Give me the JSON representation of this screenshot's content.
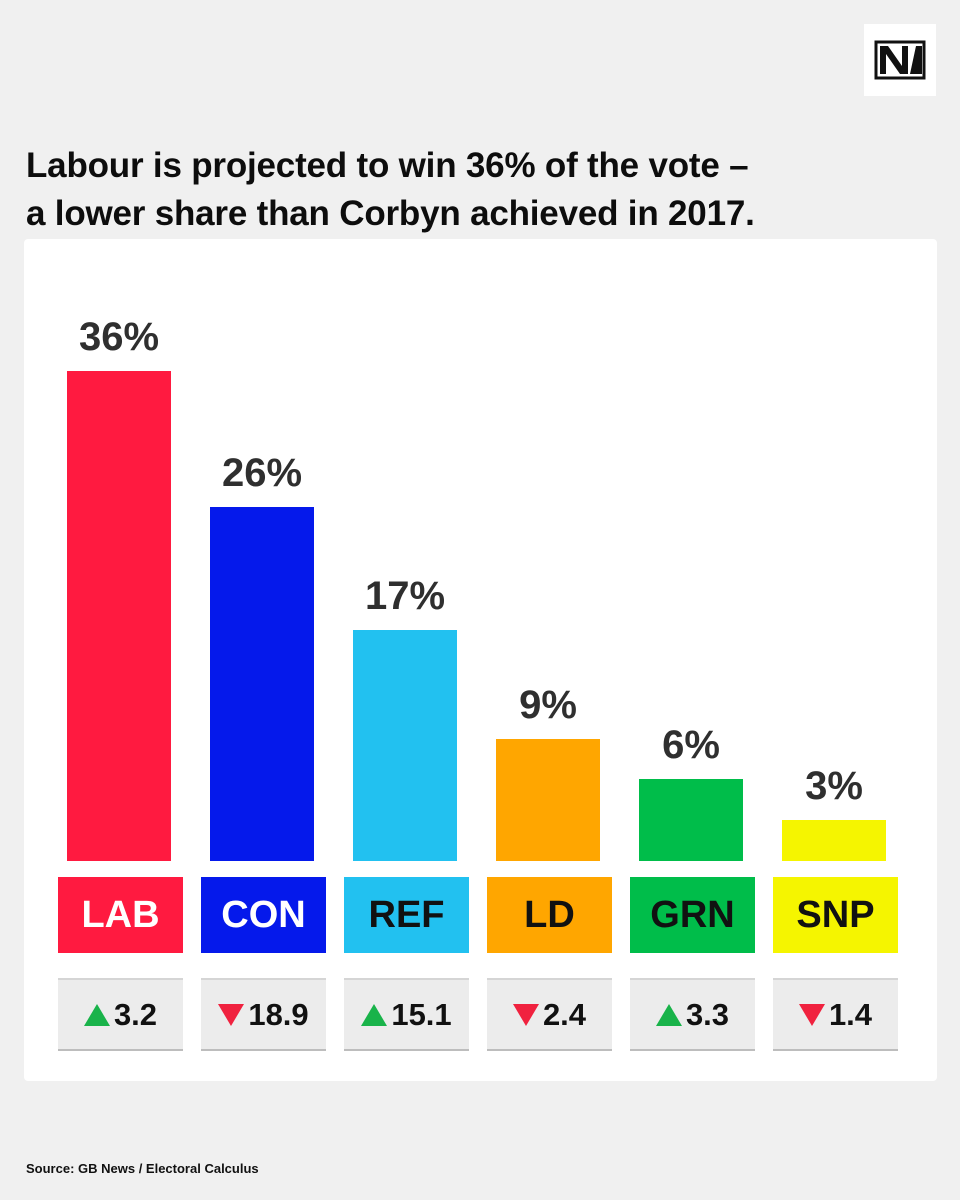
{
  "title_lines": [
    "Labour is projected to win 36% of the vote –",
    "a lower share than Corbyn achieved in 2017."
  ],
  "source": "Source: GB News / Electoral Calculus",
  "logo": {
    "icon": "nm-logo-icon"
  },
  "chart_data": {
    "type": "bar",
    "title": "Labour is projected to win 36% of the vote – a lower share than Corbyn achieved in 2017.",
    "xlabel": "",
    "ylabel": "",
    "categories": [
      "LAB",
      "CON",
      "REF",
      "LD",
      "GRN",
      "SNP"
    ],
    "values": [
      36,
      26,
      17,
      9,
      6,
      3
    ],
    "value_labels": [
      "36%",
      "26%",
      "17%",
      "9%",
      "6%",
      "3%"
    ],
    "colors": [
      "#ff1a40",
      "#0519eb",
      "#22c1f0",
      "#ffa600",
      "#00bd4a",
      "#f5f500"
    ],
    "label_text_colors": [
      "#ffffff",
      "#ffffff",
      "#111111",
      "#111111",
      "#111111",
      "#111111"
    ],
    "changes": [
      3.2,
      -18.9,
      15.1,
      -2.4,
      3.3,
      -1.4
    ],
    "change_labels": [
      "3.2",
      "18.9",
      "15.1",
      "2.4",
      "3.3",
      "1.4"
    ],
    "change_directions": [
      "up",
      "down",
      "up",
      "down",
      "up",
      "down"
    ],
    "ylim": [
      0,
      36
    ],
    "grid": false,
    "legend": "none"
  }
}
